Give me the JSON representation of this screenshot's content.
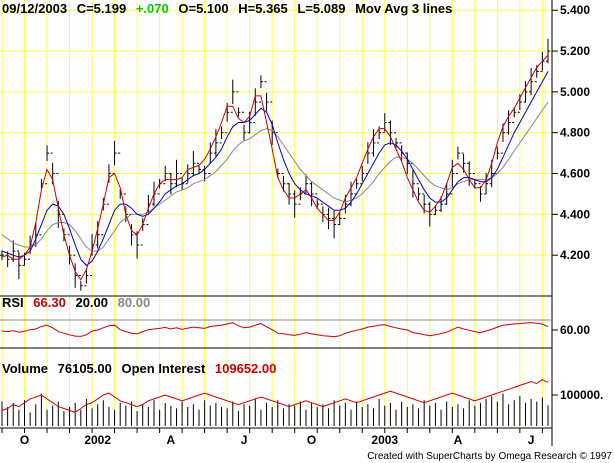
{
  "header": {
    "date": "09/12/2003",
    "close": "C=5.199",
    "change": "+.070",
    "open": "O=5.100",
    "high": "H=5.365",
    "low": "L=5.089",
    "study": "Mov Avg 3 lines"
  },
  "rsi_panel": {
    "label": "RSI",
    "value": "66.30",
    "low_level": "20.00",
    "high_level": "80.00",
    "axis_label": "60.00"
  },
  "volume_panel": {
    "label": "Volume",
    "volume": "76105.00",
    "oi_label": "Open Interest",
    "oi_value": "109652.00",
    "axis_label": "100000."
  },
  "footer": "Created with SuperCharts by Omega Research © 1997",
  "colors": {
    "change": "#00cc00",
    "rsi_line": "#cc0000",
    "ma_fast": "#cc0000",
    "ma_mid": "#0000cc",
    "ma_slow": "#888888",
    "grid_v": "#ffff44",
    "grid_h": "#ffff44"
  },
  "chart_data": {
    "type": "line",
    "title": "",
    "price_axis": {
      "ticks": [
        "5.400",
        "5.200",
        "5.000",
        "4.800",
        "4.600",
        "4.400",
        "4.200"
      ],
      "range": [
        4.0,
        5.45
      ]
    },
    "x_ticks": [
      "O",
      "2002",
      "A",
      "J",
      "O",
      "2003",
      "A",
      "J"
    ],
    "grid": true,
    "series": [
      {
        "kind": "close",
        "values": [
          4.2,
          4.18,
          4.22,
          4.15,
          4.18,
          4.25,
          4.3,
          4.55,
          4.7,
          4.6,
          4.4,
          4.3,
          4.2,
          4.1,
          4.05,
          4.1,
          4.25,
          4.3,
          4.45,
          4.6,
          4.7,
          4.5,
          4.4,
          4.3,
          4.25,
          4.35,
          4.45,
          4.5,
          4.55,
          4.6,
          4.55,
          4.6,
          4.55,
          4.6,
          4.65,
          4.62,
          4.6,
          4.7,
          4.75,
          4.8,
          4.9,
          5.0,
          4.9,
          4.8,
          4.85,
          4.95,
          5.05,
          4.95,
          4.8,
          4.6,
          4.55,
          4.5,
          4.45,
          4.5,
          4.55,
          4.5,
          4.45,
          4.4,
          4.38,
          4.35,
          4.38,
          4.45,
          4.5,
          4.55,
          4.6,
          4.7,
          4.75,
          4.8,
          4.85,
          4.8,
          4.75,
          4.7,
          4.65,
          4.55,
          4.5,
          4.45,
          4.4,
          4.42,
          4.45,
          4.5,
          4.6,
          4.7,
          4.65,
          4.6,
          4.55,
          4.5,
          4.55,
          4.6,
          4.7,
          4.8,
          4.85,
          4.9,
          4.95,
          5.0,
          5.05,
          5.1,
          5.15,
          5.2
        ]
      },
      {
        "kind": "ma_fast",
        "values": [
          4.19,
          4.2,
          4.18,
          4.18,
          4.2,
          4.24,
          4.36,
          4.52,
          4.62,
          4.57,
          4.43,
          4.3,
          4.2,
          4.12,
          4.08,
          4.13,
          4.22,
          4.33,
          4.45,
          4.58,
          4.6,
          4.53,
          4.4,
          4.32,
          4.3,
          4.35,
          4.43,
          4.5,
          4.55,
          4.57,
          4.57,
          4.57,
          4.58,
          4.62,
          4.63,
          4.64,
          4.67,
          4.72,
          4.78,
          4.85,
          4.93,
          4.93,
          4.87,
          4.85,
          4.88,
          4.98,
          4.98,
          4.85,
          4.72,
          4.58,
          4.52,
          4.48,
          4.48,
          4.5,
          4.52,
          4.48,
          4.43,
          4.4,
          4.37,
          4.37,
          4.41,
          4.48,
          4.53,
          4.58,
          4.65,
          4.72,
          4.78,
          4.82,
          4.82,
          4.78,
          4.72,
          4.66,
          4.58,
          4.52,
          4.46,
          4.42,
          4.41,
          4.44,
          4.48,
          4.55,
          4.63,
          4.65,
          4.62,
          4.57,
          4.53,
          4.53,
          4.57,
          4.65,
          4.75,
          4.83,
          4.88,
          4.92,
          4.97,
          5.02,
          5.07,
          5.12,
          5.15,
          5.18
        ]
      },
      {
        "kind": "ma_mid",
        "values": [
          4.22,
          4.21,
          4.2,
          4.19,
          4.2,
          4.22,
          4.28,
          4.35,
          4.42,
          4.45,
          4.44,
          4.4,
          4.33,
          4.25,
          4.18,
          4.15,
          4.17,
          4.22,
          4.28,
          4.35,
          4.42,
          4.45,
          4.45,
          4.43,
          4.4,
          4.39,
          4.4,
          4.43,
          4.46,
          4.5,
          4.52,
          4.54,
          4.55,
          4.57,
          4.59,
          4.6,
          4.62,
          4.65,
          4.68,
          4.72,
          4.78,
          4.83,
          4.85,
          4.85,
          4.86,
          4.89,
          4.92,
          4.9,
          4.84,
          4.75,
          4.67,
          4.6,
          4.55,
          4.52,
          4.5,
          4.49,
          4.48,
          4.46,
          4.44,
          4.42,
          4.42,
          4.43,
          4.46,
          4.5,
          4.55,
          4.6,
          4.65,
          4.7,
          4.74,
          4.75,
          4.74,
          4.71,
          4.67,
          4.62,
          4.57,
          4.52,
          4.48,
          4.46,
          4.46,
          4.48,
          4.52,
          4.56,
          4.58,
          4.58,
          4.57,
          4.56,
          4.56,
          4.58,
          4.62,
          4.68,
          4.74,
          4.8,
          4.85,
          4.9,
          4.95,
          5.0,
          5.05,
          5.1
        ]
      },
      {
        "kind": "ma_slow",
        "values": [
          4.3,
          4.28,
          4.26,
          4.25,
          4.24,
          4.24,
          4.25,
          4.28,
          4.32,
          4.35,
          4.36,
          4.36,
          4.35,
          4.32,
          4.28,
          4.24,
          4.22,
          4.22,
          4.24,
          4.28,
          4.32,
          4.36,
          4.38,
          4.4,
          4.4,
          4.4,
          4.41,
          4.43,
          4.45,
          4.47,
          4.49,
          4.51,
          4.52,
          4.53,
          4.55,
          4.56,
          4.57,
          4.59,
          4.61,
          4.64,
          4.67,
          4.71,
          4.74,
          4.76,
          4.77,
          4.79,
          4.81,
          4.82,
          4.81,
          4.78,
          4.74,
          4.7,
          4.66,
          4.62,
          4.59,
          4.56,
          4.54,
          4.52,
          4.5,
          4.48,
          4.47,
          4.46,
          4.47,
          4.48,
          4.5,
          4.53,
          4.56,
          4.6,
          4.63,
          4.66,
          4.68,
          4.68,
          4.67,
          4.65,
          4.62,
          4.59,
          4.56,
          4.54,
          4.53,
          4.52,
          4.53,
          4.55,
          4.56,
          4.57,
          4.57,
          4.57,
          4.57,
          4.58,
          4.6,
          4.63,
          4.67,
          4.71,
          4.75,
          4.79,
          4.83,
          4.87,
          4.91,
          4.95
        ]
      }
    ],
    "rsi": {
      "levels": [
        20,
        80
      ],
      "range": [
        0,
        100
      ],
      "ticks": [
        60
      ],
      "values": [
        52,
        50,
        53,
        48,
        51,
        56,
        58,
        66,
        70,
        62,
        50,
        45,
        40,
        36,
        35,
        40,
        52,
        55,
        62,
        68,
        70,
        56,
        50,
        45,
        43,
        50,
        56,
        58,
        60,
        63,
        58,
        62,
        57,
        61,
        64,
        62,
        60,
        66,
        68,
        70,
        74,
        78,
        68,
        62,
        64,
        70,
        75,
        65,
        56,
        45,
        43,
        40,
        38,
        42,
        47,
        43,
        40,
        37,
        36,
        34,
        37,
        45,
        50,
        54,
        58,
        64,
        67,
        70,
        72,
        66,
        62,
        58,
        55,
        47,
        44,
        40,
        37,
        40,
        44,
        48,
        56,
        64,
        58,
        54,
        50,
        47,
        52,
        57,
        64,
        70,
        72,
        74,
        75,
        77,
        78,
        76,
        73,
        66
      ]
    },
    "volume": {
      "ticks": [
        100000
      ],
      "range": [
        0,
        150000
      ],
      "volume": [
        90000,
        70000,
        85000,
        60000,
        95000,
        50000,
        80000,
        120000,
        60000,
        75000,
        90000,
        55000,
        70000,
        85000,
        60000,
        100000,
        65000,
        80000,
        95000,
        70000,
        60000,
        85000,
        75000,
        90000,
        55000,
        80000,
        70000,
        95000,
        60000,
        85000,
        75000,
        65000,
        90000,
        70000,
        80000,
        60000,
        95000,
        75000,
        85000,
        70000,
        65000,
        90000,
        55000,
        80000,
        75000,
        100000,
        60000,
        85000,
        70000,
        95000,
        65000,
        80000,
        75000,
        90000,
        60000,
        85000,
        70000,
        80000,
        65000,
        95000,
        75000,
        85000,
        60000,
        90000,
        70000,
        80000,
        65000,
        100000,
        75000,
        85000,
        60000,
        90000,
        70000,
        80000,
        65000,
        95000,
        75000,
        85000,
        60000,
        90000,
        70000,
        80000,
        65000,
        95000,
        75000,
        85000,
        100000,
        110000,
        90000,
        120000,
        80000,
        95000,
        110000,
        85000,
        100000,
        90000,
        105000,
        76105
      ],
      "open_interest": [
        95000,
        96000,
        98000,
        97000,
        99000,
        101000,
        102000,
        103000,
        101000,
        99000,
        97000,
        96000,
        95000,
        94000,
        96000,
        98000,
        99000,
        101000,
        103000,
        104000,
        102000,
        100000,
        99000,
        98000,
        97000,
        98000,
        100000,
        101000,
        102000,
        103000,
        102000,
        101000,
        100000,
        101000,
        102000,
        103000,
        104000,
        103000,
        102000,
        101000,
        100000,
        99000,
        98000,
        99000,
        100000,
        101000,
        102000,
        101000,
        100000,
        99000,
        98000,
        97000,
        98000,
        99000,
        100000,
        99000,
        98000,
        97000,
        98000,
        99000,
        100000,
        101000,
        100000,
        99000,
        100000,
        101000,
        102000,
        103000,
        104000,
        105000,
        104000,
        103000,
        102000,
        101000,
        100000,
        99000,
        100000,
        101000,
        102000,
        103000,
        104000,
        103000,
        102000,
        101000,
        100000,
        101000,
        102000,
        103000,
        104000,
        105000,
        106000,
        107000,
        108000,
        109000,
        110000,
        109000,
        111000,
        109652
      ]
    }
  }
}
